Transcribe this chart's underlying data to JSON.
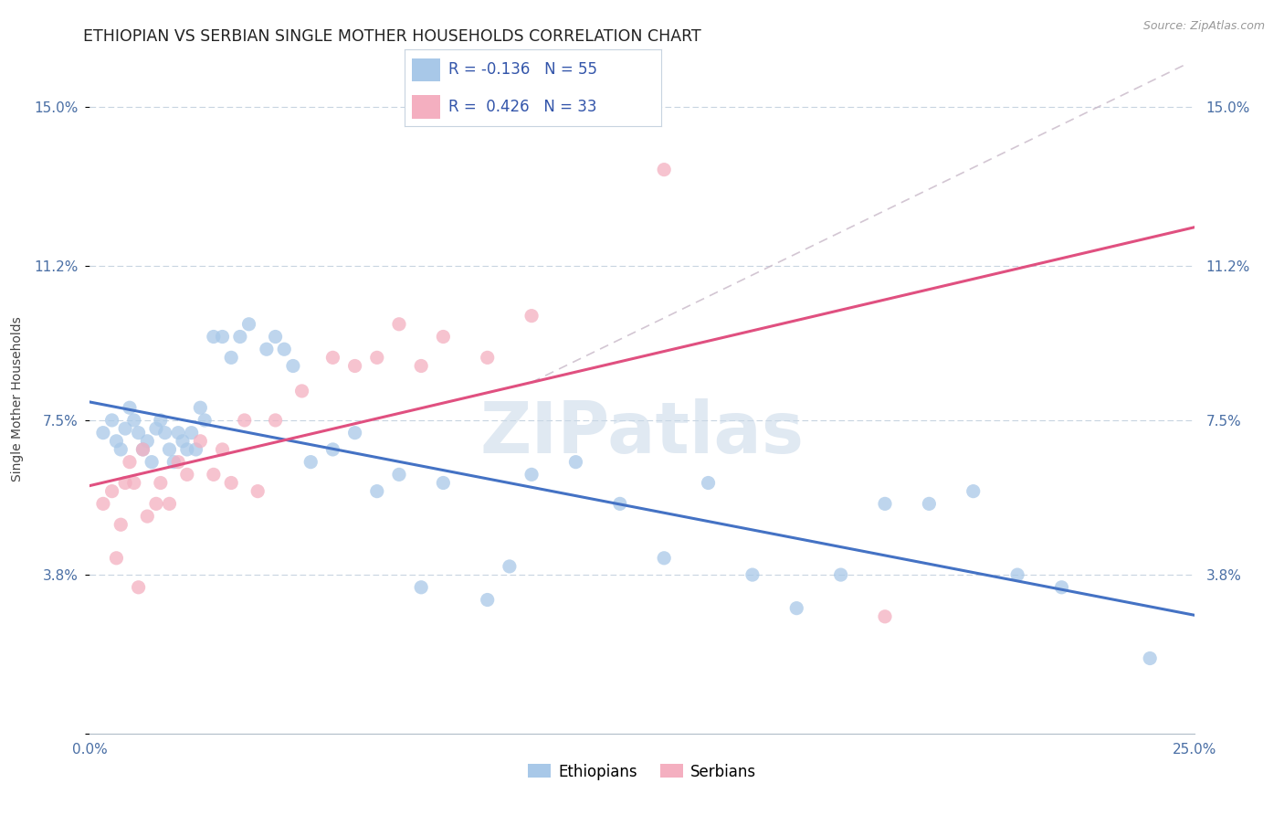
{
  "title": "ETHIOPIAN VS SERBIAN SINGLE MOTHER HOUSEHOLDS CORRELATION CHART",
  "source": "Source: ZipAtlas.com",
  "ylabel": "Single Mother Households",
  "xlim": [
    0.0,
    0.25
  ],
  "ylim": [
    0.0,
    0.16
  ],
  "yticks": [
    0.0,
    0.038,
    0.075,
    0.112,
    0.15
  ],
  "yticklabels_left": [
    "",
    "3.8%",
    "7.5%",
    "11.2%",
    "15.0%"
  ],
  "yticklabels_right": [
    "",
    "3.8%",
    "7.5%",
    "11.2%",
    "15.0%"
  ],
  "xtick_positions": [
    0.0,
    0.05,
    0.1,
    0.15,
    0.2,
    0.25
  ],
  "xticklabels": [
    "0.0%",
    "",
    "",
    "",
    "",
    "25.0%"
  ],
  "ethiopian_color": "#a8c8e8",
  "serbian_color": "#f4afc0",
  "ethiopian_line_color": "#4472c4",
  "serbian_line_color": "#e05080",
  "dashed_line_color": "#c8b8c8",
  "R_ethiopian": -0.136,
  "N_ethiopian": 55,
  "R_serbian": 0.426,
  "N_serbian": 33,
  "legend_label_ethiopian": "Ethiopians",
  "legend_label_serbian": "Serbians",
  "ethiopians_x": [
    0.003,
    0.005,
    0.006,
    0.007,
    0.008,
    0.009,
    0.01,
    0.011,
    0.012,
    0.013,
    0.014,
    0.015,
    0.016,
    0.017,
    0.018,
    0.019,
    0.02,
    0.021,
    0.022,
    0.023,
    0.024,
    0.025,
    0.026,
    0.028,
    0.03,
    0.032,
    0.034,
    0.036,
    0.04,
    0.042,
    0.044,
    0.046,
    0.05,
    0.055,
    0.06,
    0.065,
    0.07,
    0.075,
    0.08,
    0.09,
    0.095,
    0.1,
    0.11,
    0.12,
    0.13,
    0.14,
    0.15,
    0.16,
    0.17,
    0.18,
    0.19,
    0.2,
    0.21,
    0.22,
    0.24
  ],
  "ethiopians_y": [
    0.072,
    0.075,
    0.07,
    0.068,
    0.073,
    0.078,
    0.075,
    0.072,
    0.068,
    0.07,
    0.065,
    0.073,
    0.075,
    0.072,
    0.068,
    0.065,
    0.072,
    0.07,
    0.068,
    0.072,
    0.068,
    0.078,
    0.075,
    0.095,
    0.095,
    0.09,
    0.095,
    0.098,
    0.092,
    0.095,
    0.092,
    0.088,
    0.065,
    0.068,
    0.072,
    0.058,
    0.062,
    0.035,
    0.06,
    0.032,
    0.04,
    0.062,
    0.065,
    0.055,
    0.042,
    0.06,
    0.038,
    0.03,
    0.038,
    0.055,
    0.055,
    0.058,
    0.038,
    0.035,
    0.018
  ],
  "serbians_x": [
    0.003,
    0.005,
    0.006,
    0.007,
    0.008,
    0.009,
    0.01,
    0.011,
    0.012,
    0.013,
    0.015,
    0.016,
    0.018,
    0.02,
    0.022,
    0.025,
    0.028,
    0.03,
    0.032,
    0.035,
    0.038,
    0.042,
    0.048,
    0.055,
    0.06,
    0.065,
    0.07,
    0.075,
    0.08,
    0.09,
    0.1,
    0.13,
    0.18
  ],
  "serbians_y": [
    0.055,
    0.058,
    0.042,
    0.05,
    0.06,
    0.065,
    0.06,
    0.035,
    0.068,
    0.052,
    0.055,
    0.06,
    0.055,
    0.065,
    0.062,
    0.07,
    0.062,
    0.068,
    0.06,
    0.075,
    0.058,
    0.075,
    0.082,
    0.09,
    0.088,
    0.09,
    0.098,
    0.088,
    0.095,
    0.09,
    0.1,
    0.135,
    0.028
  ],
  "background_color": "#ffffff",
  "grid_color": "#c8d4e0",
  "title_fontsize": 12.5,
  "axis_label_fontsize": 10,
  "tick_fontsize": 11,
  "legend_fontsize": 12,
  "watermark_text": "ZIPatlas",
  "watermark_color": "#c8d8e8",
  "watermark_alpha": 0.55
}
